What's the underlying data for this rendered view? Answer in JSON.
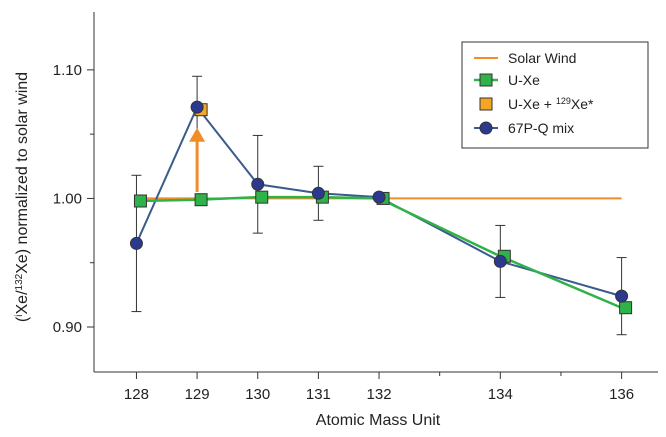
{
  "chart_data": {
    "type": "line",
    "title": "",
    "xlabel": "Atomic Mass Unit",
    "ylabel": "(iXe/132Xe) normalized to solar wind",
    "xlim": [
      127.3,
      136.6
    ],
    "ylim": [
      0.865,
      1.145
    ],
    "x_ticks": [
      128,
      129,
      130,
      131,
      132,
      134,
      136
    ],
    "x_tick_labels": [
      "128",
      "129",
      "130",
      "131",
      "132",
      "134",
      "136"
    ],
    "y_ticks": [
      0.9,
      1.0,
      1.1
    ],
    "y_tick_labels": [
      "0.90",
      "1.00",
      "1.10"
    ],
    "grid": false,
    "legend_position": "top-right",
    "series": [
      {
        "name": "Solar Wind",
        "color": "#f28c28",
        "marker": "none",
        "x": [
          128,
          129,
          130,
          131,
          132,
          134,
          136
        ],
        "y": [
          1.0,
          1.0,
          1.0,
          1.0,
          1.0,
          1.0,
          1.0
        ]
      },
      {
        "name": "U-Xe",
        "color": "#2fb24a",
        "marker": "square",
        "marker_color": "#2fb24a",
        "x": [
          128,
          129,
          130,
          131,
          132,
          134,
          136
        ],
        "y": [
          0.998,
          0.999,
          1.001,
          1.001,
          1.0,
          0.955,
          0.915
        ]
      },
      {
        "name": "U-Xe + 129Xe*",
        "name_main": "U-Xe + ",
        "name_sup": "129",
        "name_tail": "Xe*",
        "color": "#f28c28",
        "marker": "square",
        "marker_color": "#f5a623",
        "x": [
          129
        ],
        "y": [
          1.069
        ]
      },
      {
        "name": "67P-Q mix",
        "color": "#3b5b8c",
        "marker": "circle",
        "marker_color": "#2b3a8f",
        "x": [
          128,
          129,
          130,
          131,
          132,
          134,
          136
        ],
        "y": [
          0.965,
          1.071,
          1.011,
          1.004,
          1.001,
          0.951,
          0.924
        ],
        "error": [
          0.053,
          0.024,
          0.038,
          0.021,
          0.0,
          0.028,
          0.03
        ]
      }
    ],
    "annotations": [
      {
        "type": "arrow",
        "color": "#f28c28",
        "x": 129,
        "from_y": 1.005,
        "to_y": 1.055
      }
    ]
  }
}
